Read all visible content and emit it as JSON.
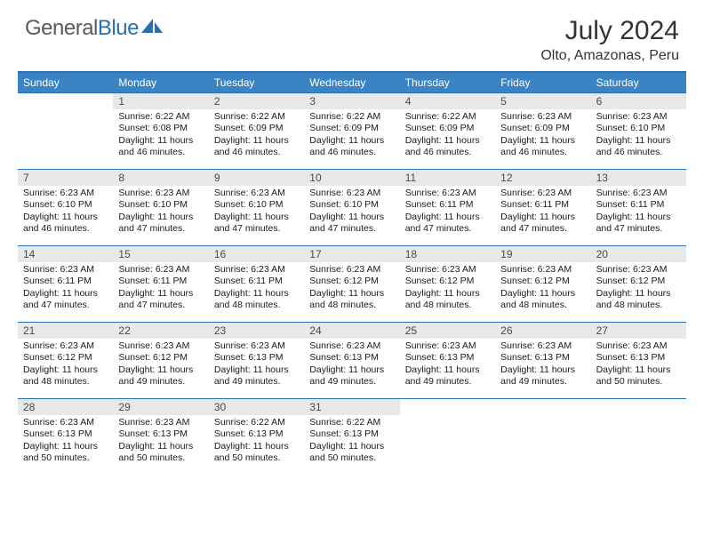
{
  "brand": {
    "part1": "General",
    "part2": "Blue"
  },
  "title": "July 2024",
  "location": "Olto, Amazonas, Peru",
  "colors": {
    "header_bg": "#3b84c4",
    "rule": "#2a6fb0",
    "daynum_bg": "#e8e8e8",
    "text": "#1a1a1a",
    "brand_gray": "#5a5a5a",
    "brand_blue": "#2a6fb0"
  },
  "dow": [
    "Sunday",
    "Monday",
    "Tuesday",
    "Wednesday",
    "Thursday",
    "Friday",
    "Saturday"
  ],
  "leading_blanks": 1,
  "days": [
    {
      "n": 1,
      "sr": "6:22 AM",
      "ss": "6:08 PM",
      "dl": "11 hours and 46 minutes."
    },
    {
      "n": 2,
      "sr": "6:22 AM",
      "ss": "6:09 PM",
      "dl": "11 hours and 46 minutes."
    },
    {
      "n": 3,
      "sr": "6:22 AM",
      "ss": "6:09 PM",
      "dl": "11 hours and 46 minutes."
    },
    {
      "n": 4,
      "sr": "6:22 AM",
      "ss": "6:09 PM",
      "dl": "11 hours and 46 minutes."
    },
    {
      "n": 5,
      "sr": "6:23 AM",
      "ss": "6:09 PM",
      "dl": "11 hours and 46 minutes."
    },
    {
      "n": 6,
      "sr": "6:23 AM",
      "ss": "6:10 PM",
      "dl": "11 hours and 46 minutes."
    },
    {
      "n": 7,
      "sr": "6:23 AM",
      "ss": "6:10 PM",
      "dl": "11 hours and 46 minutes."
    },
    {
      "n": 8,
      "sr": "6:23 AM",
      "ss": "6:10 PM",
      "dl": "11 hours and 47 minutes."
    },
    {
      "n": 9,
      "sr": "6:23 AM",
      "ss": "6:10 PM",
      "dl": "11 hours and 47 minutes."
    },
    {
      "n": 10,
      "sr": "6:23 AM",
      "ss": "6:10 PM",
      "dl": "11 hours and 47 minutes."
    },
    {
      "n": 11,
      "sr": "6:23 AM",
      "ss": "6:11 PM",
      "dl": "11 hours and 47 minutes."
    },
    {
      "n": 12,
      "sr": "6:23 AM",
      "ss": "6:11 PM",
      "dl": "11 hours and 47 minutes."
    },
    {
      "n": 13,
      "sr": "6:23 AM",
      "ss": "6:11 PM",
      "dl": "11 hours and 47 minutes."
    },
    {
      "n": 14,
      "sr": "6:23 AM",
      "ss": "6:11 PM",
      "dl": "11 hours and 47 minutes."
    },
    {
      "n": 15,
      "sr": "6:23 AM",
      "ss": "6:11 PM",
      "dl": "11 hours and 47 minutes."
    },
    {
      "n": 16,
      "sr": "6:23 AM",
      "ss": "6:11 PM",
      "dl": "11 hours and 48 minutes."
    },
    {
      "n": 17,
      "sr": "6:23 AM",
      "ss": "6:12 PM",
      "dl": "11 hours and 48 minutes."
    },
    {
      "n": 18,
      "sr": "6:23 AM",
      "ss": "6:12 PM",
      "dl": "11 hours and 48 minutes."
    },
    {
      "n": 19,
      "sr": "6:23 AM",
      "ss": "6:12 PM",
      "dl": "11 hours and 48 minutes."
    },
    {
      "n": 20,
      "sr": "6:23 AM",
      "ss": "6:12 PM",
      "dl": "11 hours and 48 minutes."
    },
    {
      "n": 21,
      "sr": "6:23 AM",
      "ss": "6:12 PM",
      "dl": "11 hours and 48 minutes."
    },
    {
      "n": 22,
      "sr": "6:23 AM",
      "ss": "6:12 PM",
      "dl": "11 hours and 49 minutes."
    },
    {
      "n": 23,
      "sr": "6:23 AM",
      "ss": "6:13 PM",
      "dl": "11 hours and 49 minutes."
    },
    {
      "n": 24,
      "sr": "6:23 AM",
      "ss": "6:13 PM",
      "dl": "11 hours and 49 minutes."
    },
    {
      "n": 25,
      "sr": "6:23 AM",
      "ss": "6:13 PM",
      "dl": "11 hours and 49 minutes."
    },
    {
      "n": 26,
      "sr": "6:23 AM",
      "ss": "6:13 PM",
      "dl": "11 hours and 49 minutes."
    },
    {
      "n": 27,
      "sr": "6:23 AM",
      "ss": "6:13 PM",
      "dl": "11 hours and 50 minutes."
    },
    {
      "n": 28,
      "sr": "6:23 AM",
      "ss": "6:13 PM",
      "dl": "11 hours and 50 minutes."
    },
    {
      "n": 29,
      "sr": "6:23 AM",
      "ss": "6:13 PM",
      "dl": "11 hours and 50 minutes."
    },
    {
      "n": 30,
      "sr": "6:22 AM",
      "ss": "6:13 PM",
      "dl": "11 hours and 50 minutes."
    },
    {
      "n": 31,
      "sr": "6:22 AM",
      "ss": "6:13 PM",
      "dl": "11 hours and 50 minutes."
    }
  ],
  "labels": {
    "sunrise": "Sunrise:",
    "sunset": "Sunset:",
    "daylight": "Daylight:"
  }
}
